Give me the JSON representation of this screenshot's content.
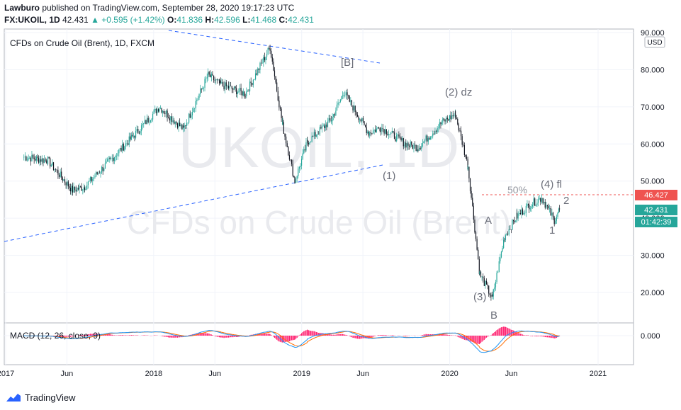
{
  "header": {
    "publisher": "Lawburo",
    "published_text": "published on TradingView.com, September 28, 2020 19:17:23 UTC",
    "symbol": "FX:UKOIL, 1D",
    "last": "42.431",
    "change": "▲ +0.595 (+1.42%)",
    "o_label": "O:",
    "o_val": "41.836",
    "h_label": "H:",
    "h_val": "42.596",
    "l_label": "L:",
    "l_val": "41.468",
    "c_label": "C:",
    "c_val": "42.431"
  },
  "legend": {
    "title": "CFDs on Crude Oil (Brent), 1D, FXCM"
  },
  "watermark": {
    "line1": "UKOIL, 1D",
    "line2": "CFDs on Crude Oil (Brent)"
  },
  "currency_badge": "USD",
  "price_tags": {
    "level": "46.427",
    "last": "42.431",
    "countdown": "01:42:39"
  },
  "footer": {
    "brand": "TradingView"
  },
  "colors": {
    "up": "#26a69a",
    "down": "#131722",
    "trendline": "#2962ff",
    "level_line": "#ef5350",
    "macd_line": "#2196f3",
    "signal_line": "#ff6d00",
    "histogram": "#ff1f6e"
  },
  "chart_data": {
    "type": "line",
    "series": [
      {
        "name": "",
        "x": [
          "2017-02",
          "2017-04",
          "2017-06",
          "2017-07",
          "2017-09",
          "2017-11",
          "2018-01",
          "2018-03",
          "2018-05",
          "2018-06",
          "2018-08",
          "2018-10",
          "2018-11",
          "2018-12",
          "2019-01",
          "2019-03",
          "2019-04",
          "2019-06",
          "2019-07",
          "2019-09",
          "2019-10",
          "2019-12",
          "2020-01",
          "2020-02",
          "2020-03",
          "2020-04",
          "2020-05",
          "2020-06",
          "2020-07",
          "2020-08",
          "2020-09",
          "2020-09-28"
        ],
        "values": [
          56.5,
          55.5,
          47.5,
          48.5,
          55.5,
          62.5,
          70.0,
          64.0,
          78.5,
          76.0,
          73.5,
          86.0,
          65.0,
          50.0,
          60.5,
          66.5,
          74.0,
          63.0,
          64.5,
          60.0,
          59.0,
          66.0,
          68.0,
          54.0,
          25.0,
          18.5,
          35.0,
          40.5,
          43.5,
          45.5,
          39.5,
          42.431
        ]
      }
    ],
    "y_axis_ticks": [
      "90.000",
      "80.000",
      "70.000",
      "60.000",
      "50.000",
      "40.000",
      "30.000",
      "20.000"
    ],
    "ylim": [
      15,
      90
    ],
    "x_axis_ticks": [
      "2017",
      "Jun",
      "2018",
      "Jun",
      "2019",
      "Jun",
      "2020",
      "Jun",
      "2021"
    ],
    "level_line": 46.427,
    "annotations": [
      "[B]",
      "(2) dz",
      "(1)",
      "(4) fl",
      "50%",
      "2",
      "A",
      "1",
      "(3)",
      "B"
    ],
    "indicator": {
      "name": "MACD (12, 26, close, 9)",
      "macd_last": "0.000",
      "y_axis_ticks": [
        "0.000"
      ]
    }
  }
}
